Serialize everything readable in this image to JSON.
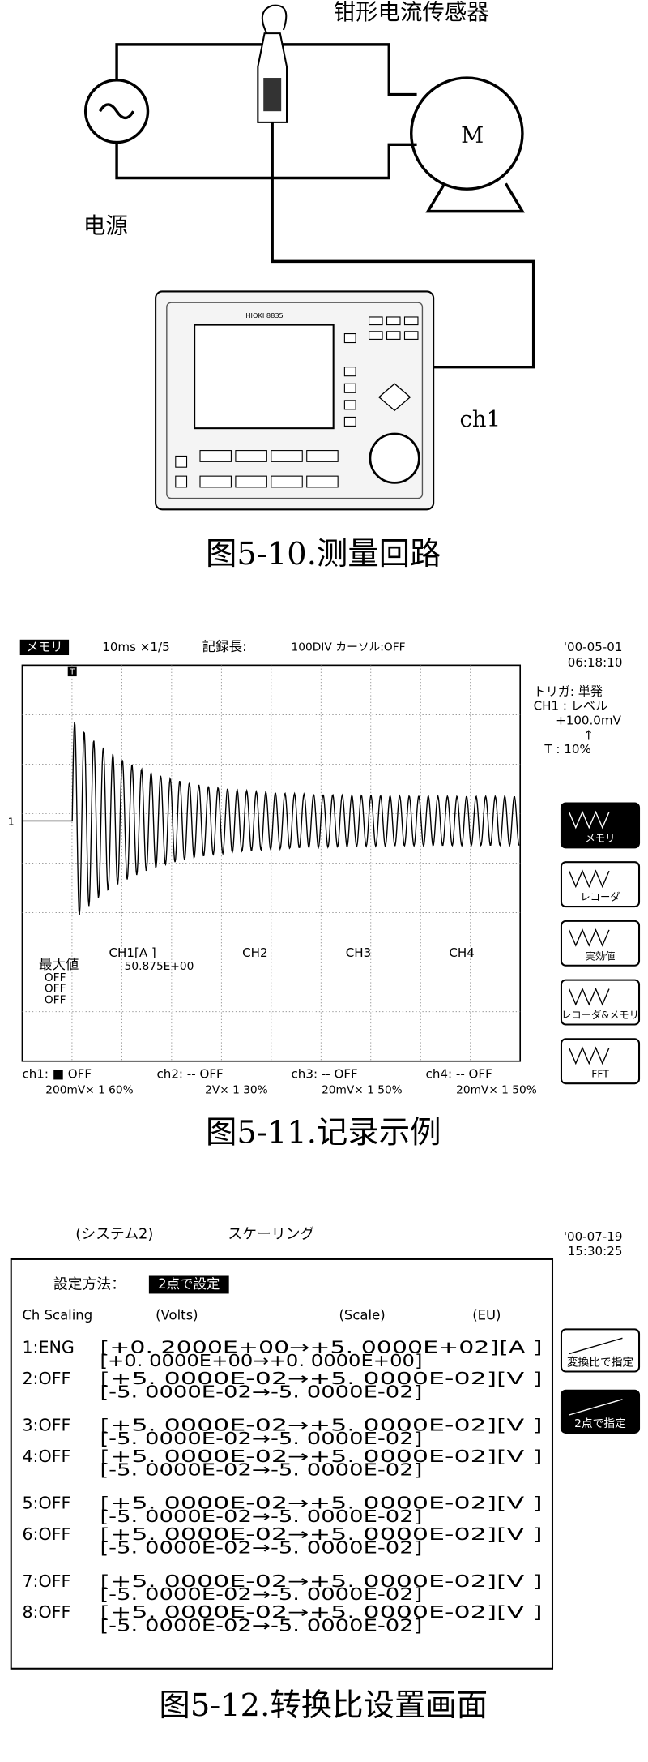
{
  "circuit": {
    "sensor_label": "钳形电流传感器",
    "power_label": "电源",
    "motor_label": "M",
    "channel_label": "ch1",
    "recorder_model": "HIOKI 8835"
  },
  "captions": [
    "图5-10.测量回路",
    "图5-11.记录示例",
    "图5-12.转换比设置画面"
  ],
  "recorder_screen": {
    "mode": "メモリ",
    "timebase": "10ms ×1/5",
    "record_length_label": "記録長:",
    "record_length": "100DIV",
    "cursor": "カーソル:OFF",
    "date": "'00-05-01",
    "time": "06:18:10",
    "trigger_marker": "T",
    "level_marker": "1",
    "trigger_settings": [
      "トリガ: 単発",
      "CH1 : レベル",
      "+100.0mV",
      "↑",
      "T : 10%"
    ],
    "measure_label": "最大値",
    "measure_channels": [
      "CH1[A      ]",
      "CH2",
      "CH3",
      "CH4"
    ],
    "ch1_value": "50.875E+00",
    "off_values": [
      "OFF",
      "OFF",
      "OFF"
    ],
    "channels": [
      {
        "name": "ch1: ■ OFF",
        "range": "200mV× 1  60%"
      },
      {
        "name": "ch2: -- OFF",
        "range": "2V× 1  30%"
      },
      {
        "name": "ch3: -- OFF",
        "range": "20mV× 1  50%"
      },
      {
        "name": "ch4: -- OFF",
        "range": "20mV× 1  50%"
      }
    ],
    "side_buttons": [
      "メモリ",
      "レコーダ",
      "実効値",
      "レコーダ&メモリ",
      "FFT"
    ]
  },
  "scaling_screen": {
    "tab": "(システム2)",
    "title": "スケーリング",
    "date": "'00-07-19",
    "time": "15:30:25",
    "method_label": "設定方法：",
    "method": "2点で設定",
    "headers": [
      "Ch Scaling",
      "(Volts)",
      "(Scale)",
      "(EU)"
    ],
    "rows": [
      {
        "ch": "1:ENG",
        "line1": "[+0. 2000E+00→+5. 0000E+02][A      ]",
        "line2": "[+0. 0000E+00→+0. 0000E+00]"
      },
      {
        "ch": "2:OFF",
        "line1": "[+5. 0000E-02→+5. 0000E-02][V      ]",
        "line2": "[-5. 0000E-02→-5. 0000E-02]"
      },
      {
        "ch": "3:OFF",
        "line1": "[+5. 0000E-02→+5. 0000E-02][V      ]",
        "line2": "[-5. 0000E-02→-5. 0000E-02]"
      },
      {
        "ch": "4:OFF",
        "line1": "[+5. 0000E-02→+5. 0000E-02][V      ]",
        "line2": "[-5. 0000E-02→-5. 0000E-02]"
      },
      {
        "ch": "5:OFF",
        "line1": "[+5. 0000E-02→+5. 0000E-02][V      ]",
        "line2": "[-5. 0000E-02→-5. 0000E-02]"
      },
      {
        "ch": "6:OFF",
        "line1": "[+5. 0000E-02→+5. 0000E-02][V      ]",
        "line2": "[-5. 0000E-02→-5. 0000E-02]"
      },
      {
        "ch": "7:OFF",
        "line1": "[+5. 0000E-02→+5. 0000E-02][V      ]",
        "line2": "[-5. 0000E-02→-5. 0000E-02]"
      },
      {
        "ch": "8:OFF",
        "line1": "[+5. 0000E-02→+5. 0000E-02][V      ]",
        "line2": "[-5. 0000E-02→-5. 0000E-02]"
      }
    ],
    "side_buttons": [
      "変換比で指定",
      "2点で指定"
    ]
  }
}
